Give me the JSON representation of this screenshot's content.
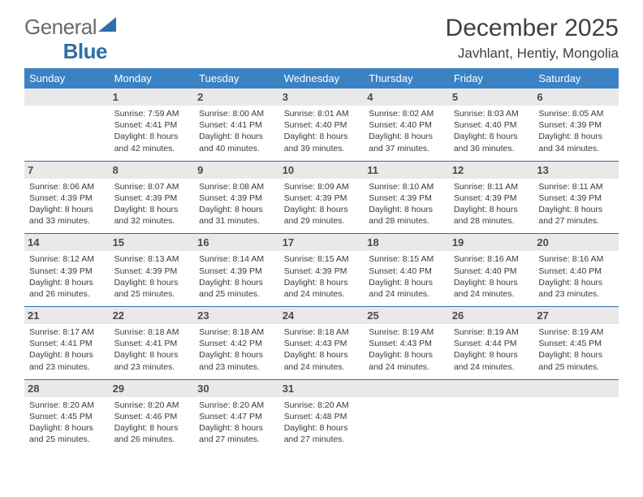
{
  "brand": {
    "part1": "General",
    "part2": "Blue"
  },
  "title": "December 2025",
  "subtitle": "Javhlant, Hentiy, Mongolia",
  "header_bg": "#3a82c4",
  "header_text": "#ffffff",
  "daybar_bg": "#e9e9e9",
  "rule_color": "#2f6fa8",
  "columns": [
    "Sunday",
    "Monday",
    "Tuesday",
    "Wednesday",
    "Thursday",
    "Friday",
    "Saturday"
  ],
  "weeks": [
    [
      null,
      {
        "n": "1",
        "sunrise": "7:59 AM",
        "sunset": "4:41 PM",
        "daylight": "8 hours and 42 minutes."
      },
      {
        "n": "2",
        "sunrise": "8:00 AM",
        "sunset": "4:41 PM",
        "daylight": "8 hours and 40 minutes."
      },
      {
        "n": "3",
        "sunrise": "8:01 AM",
        "sunset": "4:40 PM",
        "daylight": "8 hours and 39 minutes."
      },
      {
        "n": "4",
        "sunrise": "8:02 AM",
        "sunset": "4:40 PM",
        "daylight": "8 hours and 37 minutes."
      },
      {
        "n": "5",
        "sunrise": "8:03 AM",
        "sunset": "4:40 PM",
        "daylight": "8 hours and 36 minutes."
      },
      {
        "n": "6",
        "sunrise": "8:05 AM",
        "sunset": "4:39 PM",
        "daylight": "8 hours and 34 minutes."
      }
    ],
    [
      {
        "n": "7",
        "sunrise": "8:06 AM",
        "sunset": "4:39 PM",
        "daylight": "8 hours and 33 minutes."
      },
      {
        "n": "8",
        "sunrise": "8:07 AM",
        "sunset": "4:39 PM",
        "daylight": "8 hours and 32 minutes."
      },
      {
        "n": "9",
        "sunrise": "8:08 AM",
        "sunset": "4:39 PM",
        "daylight": "8 hours and 31 minutes."
      },
      {
        "n": "10",
        "sunrise": "8:09 AM",
        "sunset": "4:39 PM",
        "daylight": "8 hours and 29 minutes."
      },
      {
        "n": "11",
        "sunrise": "8:10 AM",
        "sunset": "4:39 PM",
        "daylight": "8 hours and 28 minutes."
      },
      {
        "n": "12",
        "sunrise": "8:11 AM",
        "sunset": "4:39 PM",
        "daylight": "8 hours and 28 minutes."
      },
      {
        "n": "13",
        "sunrise": "8:11 AM",
        "sunset": "4:39 PM",
        "daylight": "8 hours and 27 minutes."
      }
    ],
    [
      {
        "n": "14",
        "sunrise": "8:12 AM",
        "sunset": "4:39 PM",
        "daylight": "8 hours and 26 minutes."
      },
      {
        "n": "15",
        "sunrise": "8:13 AM",
        "sunset": "4:39 PM",
        "daylight": "8 hours and 25 minutes."
      },
      {
        "n": "16",
        "sunrise": "8:14 AM",
        "sunset": "4:39 PM",
        "daylight": "8 hours and 25 minutes."
      },
      {
        "n": "17",
        "sunrise": "8:15 AM",
        "sunset": "4:39 PM",
        "daylight": "8 hours and 24 minutes."
      },
      {
        "n": "18",
        "sunrise": "8:15 AM",
        "sunset": "4:40 PM",
        "daylight": "8 hours and 24 minutes."
      },
      {
        "n": "19",
        "sunrise": "8:16 AM",
        "sunset": "4:40 PM",
        "daylight": "8 hours and 24 minutes."
      },
      {
        "n": "20",
        "sunrise": "8:16 AM",
        "sunset": "4:40 PM",
        "daylight": "8 hours and 23 minutes."
      }
    ],
    [
      {
        "n": "21",
        "sunrise": "8:17 AM",
        "sunset": "4:41 PM",
        "daylight": "8 hours and 23 minutes."
      },
      {
        "n": "22",
        "sunrise": "8:18 AM",
        "sunset": "4:41 PM",
        "daylight": "8 hours and 23 minutes."
      },
      {
        "n": "23",
        "sunrise": "8:18 AM",
        "sunset": "4:42 PM",
        "daylight": "8 hours and 23 minutes."
      },
      {
        "n": "24",
        "sunrise": "8:18 AM",
        "sunset": "4:43 PM",
        "daylight": "8 hours and 24 minutes."
      },
      {
        "n": "25",
        "sunrise": "8:19 AM",
        "sunset": "4:43 PM",
        "daylight": "8 hours and 24 minutes."
      },
      {
        "n": "26",
        "sunrise": "8:19 AM",
        "sunset": "4:44 PM",
        "daylight": "8 hours and 24 minutes."
      },
      {
        "n": "27",
        "sunrise": "8:19 AM",
        "sunset": "4:45 PM",
        "daylight": "8 hours and 25 minutes."
      }
    ],
    [
      {
        "n": "28",
        "sunrise": "8:20 AM",
        "sunset": "4:45 PM",
        "daylight": "8 hours and 25 minutes."
      },
      {
        "n": "29",
        "sunrise": "8:20 AM",
        "sunset": "4:46 PM",
        "daylight": "8 hours and 26 minutes."
      },
      {
        "n": "30",
        "sunrise": "8:20 AM",
        "sunset": "4:47 PM",
        "daylight": "8 hours and 27 minutes."
      },
      {
        "n": "31",
        "sunrise": "8:20 AM",
        "sunset": "4:48 PM",
        "daylight": "8 hours and 27 minutes."
      },
      null,
      null,
      null
    ]
  ],
  "labels": {
    "sunrise": "Sunrise:",
    "sunset": "Sunset:",
    "daylight": "Daylight:"
  }
}
